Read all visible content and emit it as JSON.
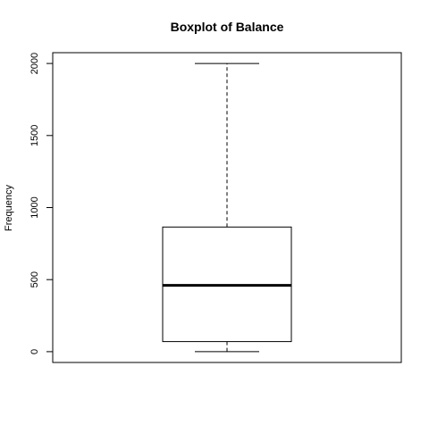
{
  "chart_data": {
    "type": "boxplot",
    "title": "Boxplot of Balance",
    "xlabel": "",
    "ylabel": "Frequency",
    "ylim": [
      -75,
      2075
    ],
    "yticks": [
      0,
      500,
      1000,
      1500,
      2000
    ],
    "ytick_labels": [
      "0",
      "500",
      "1000",
      "1500",
      "2000"
    ],
    "grid": false,
    "legend": "none",
    "series": [
      {
        "min": 0,
        "q1": 70,
        "median": 460,
        "q3": 865,
        "max": 2000
      }
    ],
    "colors": {
      "line": "#000000",
      "box_fill": "#ffffff"
    }
  }
}
